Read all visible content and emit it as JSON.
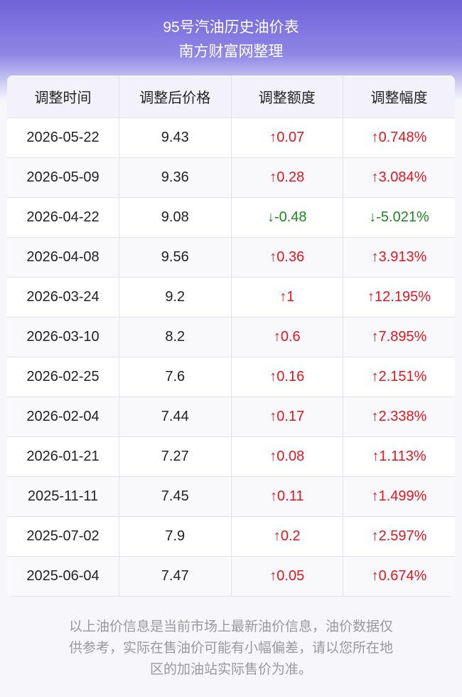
{
  "header": {
    "title": "95号汽油历史油价表",
    "subtitle": "南方财富网整理"
  },
  "table": {
    "columns": [
      "调整时间",
      "调整后价格",
      "调整额度",
      "调整幅度"
    ],
    "rows": [
      [
        "2026-05-22",
        "9.43",
        "↑0.07",
        "↑0.748%"
      ],
      [
        "2026-05-09",
        "9.36",
        "↑0.28",
        "↑3.084%"
      ],
      [
        "2026-04-22",
        "9.08",
        "↓-0.48",
        "↓-5.021%"
      ],
      [
        "2026-04-08",
        "9.56",
        "↑0.36",
        "↑3.913%"
      ],
      [
        "2026-03-24",
        "9.2",
        "↑1",
        "↑12.195%"
      ],
      [
        "2026-03-10",
        "8.2",
        "↑0.6",
        "↑7.895%"
      ],
      [
        "2026-02-25",
        "7.6",
        "↑0.16",
        "↑2.151%"
      ],
      [
        "2026-02-04",
        "7.44",
        "↑0.17",
        "↑2.338%"
      ],
      [
        "2026-01-21",
        "7.27",
        "↑0.08",
        "↑1.113%"
      ],
      [
        "2025-11-11",
        "7.45",
        "↑0.11",
        "↑1.499%"
      ],
      [
        "2025-07-02",
        "7.9",
        "↑0.2",
        "↑2.597%"
      ],
      [
        "2025-06-04",
        "7.47",
        "↑0.05",
        "↑0.674%"
      ]
    ],
    "up_color": "#e8141e",
    "down_color": "#1e8a1e"
  },
  "footer": {
    "lines": [
      "以上油价信息是当前市场上最新油价信息，油价数据仅",
      "供参考，实际在售油价可能有小幅偏差，请以您所在地",
      "区的加油站实际售价为准。"
    ]
  }
}
